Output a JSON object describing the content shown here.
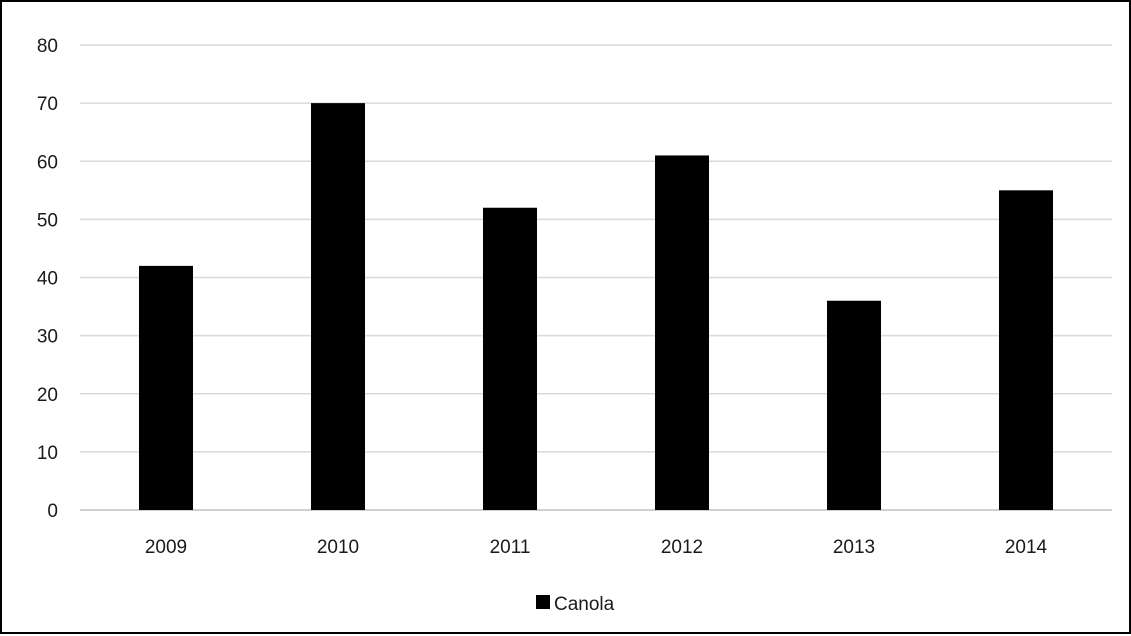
{
  "chart_data": {
    "type": "bar",
    "categories": [
      "2009",
      "2010",
      "2011",
      "2012",
      "2013",
      "2014"
    ],
    "series": [
      {
        "name": "Canola",
        "values": [
          42,
          70,
          52,
          61,
          36,
          55
        ],
        "color": "#000000"
      }
    ],
    "title": "",
    "xlabel": "",
    "ylabel": "",
    "ylim": [
      0,
      80
    ],
    "yticks": [
      "0",
      "10",
      "20",
      "30",
      "40",
      "50",
      "60",
      "70",
      "80"
    ],
    "grid": true,
    "legend_position": "bottom-center",
    "gridline_color": "#d9d9d9"
  }
}
